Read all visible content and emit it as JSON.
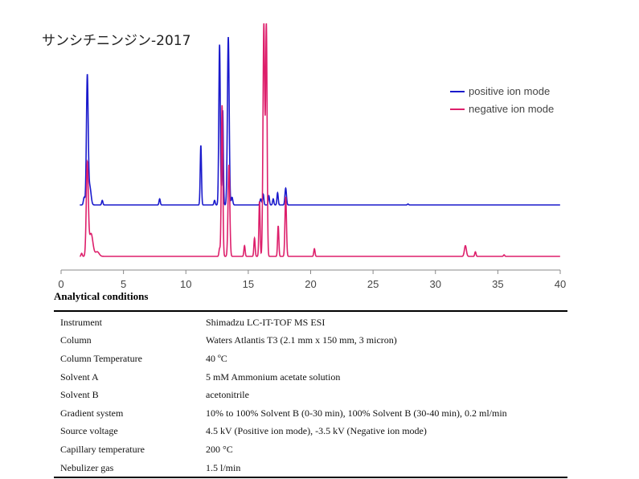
{
  "chart_data": {
    "type": "line",
    "title": "サンシチニンジン-2017",
    "xlabel": "",
    "ylabel": "",
    "xlim": [
      0,
      40
    ],
    "x_ticks": [
      0,
      5,
      10,
      15,
      20,
      25,
      30,
      35,
      40
    ],
    "legend_position": "top-right",
    "grid": false,
    "series": [
      {
        "name": "positive ion mode",
        "color": "#1a1acc",
        "baseline": 0,
        "peaks": [
          {
            "t": 1.85,
            "h": 0.05,
            "w": 0.06
          },
          {
            "t": 2.1,
            "h": 0.84,
            "w": 0.07
          },
          {
            "t": 2.3,
            "h": 0.12,
            "w": 0.1
          },
          {
            "t": 3.3,
            "h": 0.03,
            "w": 0.05
          },
          {
            "t": 7.9,
            "h": 0.04,
            "w": 0.05
          },
          {
            "t": 11.2,
            "h": 0.39,
            "w": 0.05
          },
          {
            "t": 12.3,
            "h": 0.03,
            "w": 0.05
          },
          {
            "t": 12.7,
            "h": 1.05,
            "w": 0.06
          },
          {
            "t": 12.95,
            "h": 0.62,
            "w": 0.05
          },
          {
            "t": 13.4,
            "h": 1.1,
            "w": 0.07
          },
          {
            "t": 13.7,
            "h": 0.05,
            "w": 0.06
          },
          {
            "t": 16.0,
            "h": 0.04,
            "w": 0.06
          },
          {
            "t": 16.2,
            "h": 0.07,
            "w": 0.05
          },
          {
            "t": 16.65,
            "h": 0.06,
            "w": 0.05
          },
          {
            "t": 17.0,
            "h": 0.04,
            "w": 0.05
          },
          {
            "t": 17.35,
            "h": 0.08,
            "w": 0.05
          },
          {
            "t": 18.0,
            "h": 0.11,
            "w": 0.06
          },
          {
            "t": 27.8,
            "h": 0.006,
            "w": 0.05
          }
        ]
      },
      {
        "name": "negative ion mode",
        "color": "#dd1f6b",
        "baseline": 0,
        "peaks": [
          {
            "t": 1.65,
            "h": 0.02,
            "w": 0.05
          },
          {
            "t": 2.1,
            "h": 0.6,
            "w": 0.08
          },
          {
            "t": 2.4,
            "h": 0.15,
            "w": 0.15
          },
          {
            "t": 2.9,
            "h": 0.03,
            "w": 0.15
          },
          {
            "t": 12.7,
            "h": 0.05,
            "w": 0.05
          },
          {
            "t": 12.9,
            "h": 0.99,
            "w": 0.06
          },
          {
            "t": 13.45,
            "h": 0.6,
            "w": 0.07
          },
          {
            "t": 14.7,
            "h": 0.07,
            "w": 0.05
          },
          {
            "t": 15.5,
            "h": 0.12,
            "w": 0.05
          },
          {
            "t": 15.9,
            "h": 0.36,
            "w": 0.05
          },
          {
            "t": 16.25,
            "h": 1.52,
            "w": 0.07
          },
          {
            "t": 16.45,
            "h": 1.5,
            "w": 0.06
          },
          {
            "t": 17.4,
            "h": 0.2,
            "w": 0.05
          },
          {
            "t": 18.0,
            "h": 0.39,
            "w": 0.06
          },
          {
            "t": 20.3,
            "h": 0.05,
            "w": 0.05
          },
          {
            "t": 32.4,
            "h": 0.07,
            "w": 0.08
          },
          {
            "t": 33.2,
            "h": 0.03,
            "w": 0.05
          },
          {
            "t": 35.5,
            "h": 0.01,
            "w": 0.05
          }
        ]
      }
    ]
  },
  "conditions": {
    "heading": "Analytical conditions",
    "rows": [
      {
        "label": "Instrument",
        "value": "Shimadzu LC-IT-TOF MS ESI"
      },
      {
        "label": "Column",
        "value": "Waters Atlantis T3 (2.1 mm x 150 mm, 3 micron)"
      },
      {
        "label": "Column Temperature",
        "value": "40 ºC"
      },
      {
        "label": "Solvent A",
        "value": "5 mM Ammonium acetate solution"
      },
      {
        "label": "Solvent B",
        "value": "acetonitrile"
      },
      {
        "label": "Gradient system",
        "value": "10% to 100% Solvent B (0-30 min), 100% Solvent B (30-40 min), 0.2 ml/min"
      },
      {
        "label": "Source voltage",
        "value": "4.5 kV (Positive ion mode), -3.5 kV (Negative ion mode)"
      },
      {
        "label": "Capillary temperature",
        "value": "200 °C"
      },
      {
        "label": "Nebulizer gas",
        "value": "1.5 l/min"
      }
    ]
  }
}
